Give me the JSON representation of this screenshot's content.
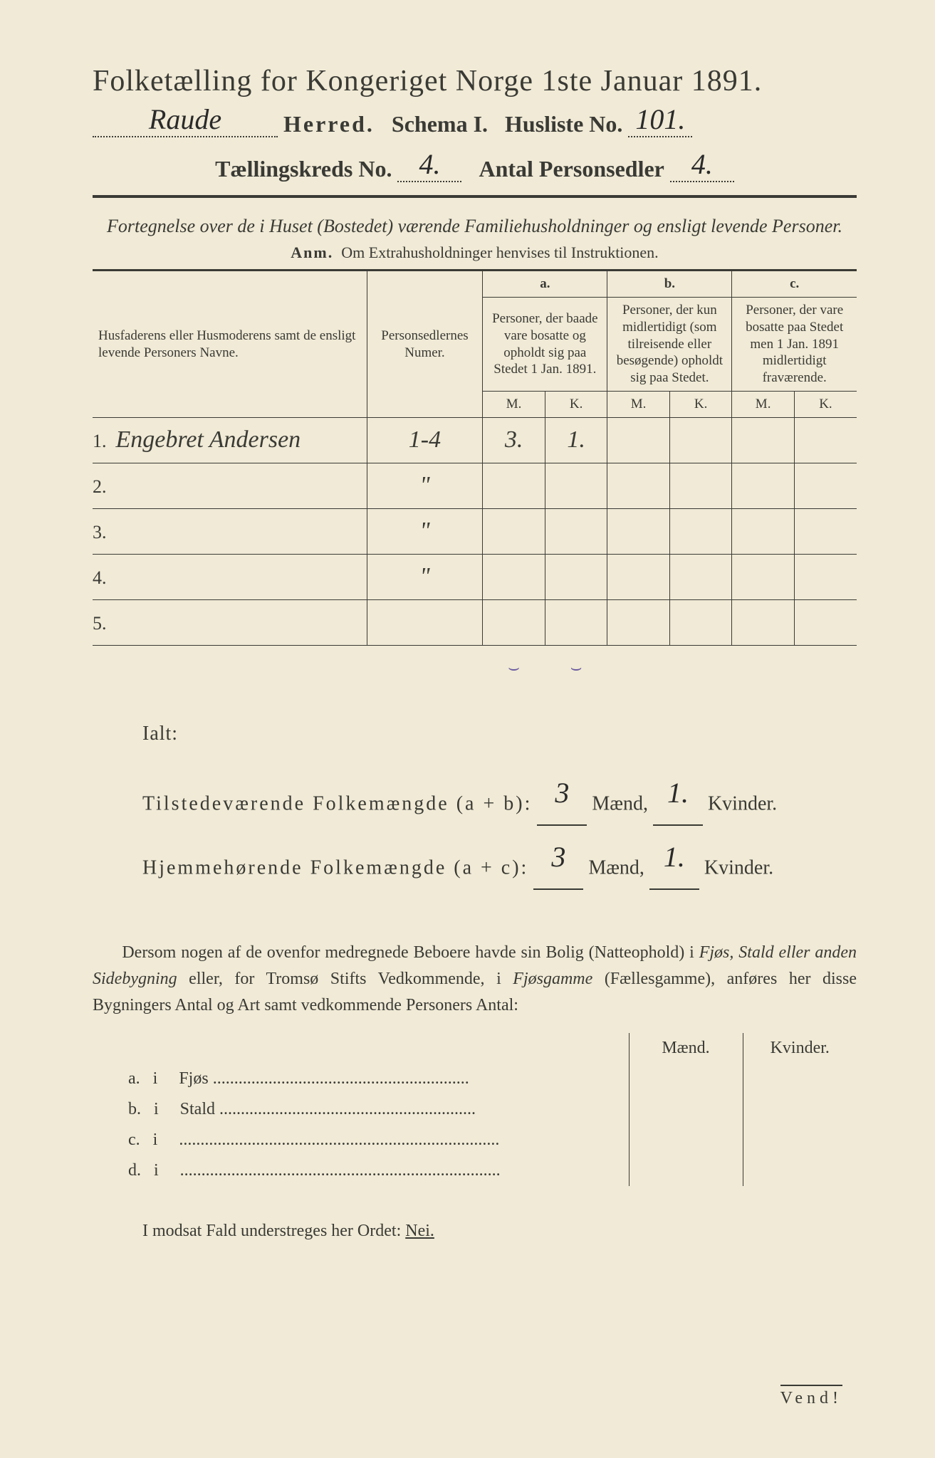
{
  "header": {
    "title_line": "Folketælling for Kongeriget Norge 1ste Januar 1891.",
    "herred_hw": "Raude",
    "herred_label": "Herred.",
    "schema_label": "Schema I.",
    "husliste_label": "Husliste No.",
    "husliste_no_hw": "101.",
    "kreds_label": "Tællingskreds No.",
    "kreds_no_hw": "4.",
    "antal_label": "Antal Personsedler",
    "antal_hw": "4."
  },
  "instruction": {
    "line": "Fortegnelse over de i Huset (Bostedet) værende Familiehusholdninger og ensligt levende Personer.",
    "anm_prefix": "Anm.",
    "anm_text": "Om Extrahusholdninger henvises til Instruktionen."
  },
  "table": {
    "head": {
      "col1": "Husfaderens eller Husmoderens samt de ensligt levende Personers Navne.",
      "col2": "Personsedlernes Numer.",
      "a_label": "a.",
      "a_text": "Personer, der baade vare bosatte og opholdt sig paa Stedet 1 Jan. 1891.",
      "b_label": "b.",
      "b_text": "Personer, der kun midlertidigt (som tilreisende eller besøgende) opholdt sig paa Stedet.",
      "c_label": "c.",
      "c_text": "Personer, der vare bosatte paa Stedet men 1 Jan. 1891 midlertidigt fraværende.",
      "m": "M.",
      "k": "K."
    },
    "rows": [
      {
        "n": "1.",
        "name_hw": "Engebret Andersen",
        "num_hw": "1-4",
        "a_m": "3.",
        "a_k": "1.",
        "b_m": "",
        "b_k": "",
        "c_m": "",
        "c_k": ""
      },
      {
        "n": "2.",
        "name_hw": "",
        "num_hw": "\"",
        "a_m": "",
        "a_k": "",
        "b_m": "",
        "b_k": "",
        "c_m": "",
        "c_k": ""
      },
      {
        "n": "3.",
        "name_hw": "",
        "num_hw": "\"",
        "a_m": "",
        "a_k": "",
        "b_m": "",
        "b_k": "",
        "c_m": "",
        "c_k": ""
      },
      {
        "n": "4.",
        "name_hw": "",
        "num_hw": "\"",
        "a_m": "",
        "a_k": "",
        "b_m": "",
        "b_k": "",
        "c_m": "",
        "c_k": ""
      },
      {
        "n": "5.",
        "name_hw": "",
        "num_hw": "",
        "a_m": "",
        "a_k": "",
        "b_m": "",
        "b_k": "",
        "c_m": "",
        "c_k": ""
      }
    ],
    "checkmarks": {
      "a_m": "⌣",
      "a_k": "⌣"
    }
  },
  "totals": {
    "ialt": "Ialt:",
    "line1_label": "Tilstedeværende Folkemængde (a + b):",
    "line2_label": "Hjemmehørende Folkemængde (a + c):",
    "maend": "Mænd,",
    "kvinder": "Kvinder.",
    "l1_m": "3",
    "l1_k": "1.",
    "l2_m": "3",
    "l2_k": "1."
  },
  "para": {
    "text1": "Dersom nogen af de ovenfor medregnede Beboere havde sin Bolig (Natteophold) i ",
    "em1": "Fjøs, Stald eller anden Sidebygning",
    "text2": " eller, for Tromsø Stifts Vedkommende, i ",
    "em2": "Fjøsgamme",
    "text3": " (Fællesgamme), anføres her disse Bygningers Antal og Art samt vedkommende Personers Antal:"
  },
  "fjos": {
    "head_m": "Mænd.",
    "head_k": "Kvinder.",
    "rows": [
      {
        "letter": "a.",
        "i": "i",
        "label": "Fjøs"
      },
      {
        "letter": "b.",
        "i": "i",
        "label": "Stald"
      },
      {
        "letter": "c.",
        "i": "i",
        "label": ""
      },
      {
        "letter": "d.",
        "i": "i",
        "label": ""
      }
    ]
  },
  "modsat": {
    "text": "I modsat Fald understreges her Ordet:",
    "nei": "Nei."
  },
  "vend": "Vend!",
  "colors": {
    "paper": "#f0ead6",
    "ink": "#3a3a35",
    "pencil": "#5a4a8a"
  }
}
